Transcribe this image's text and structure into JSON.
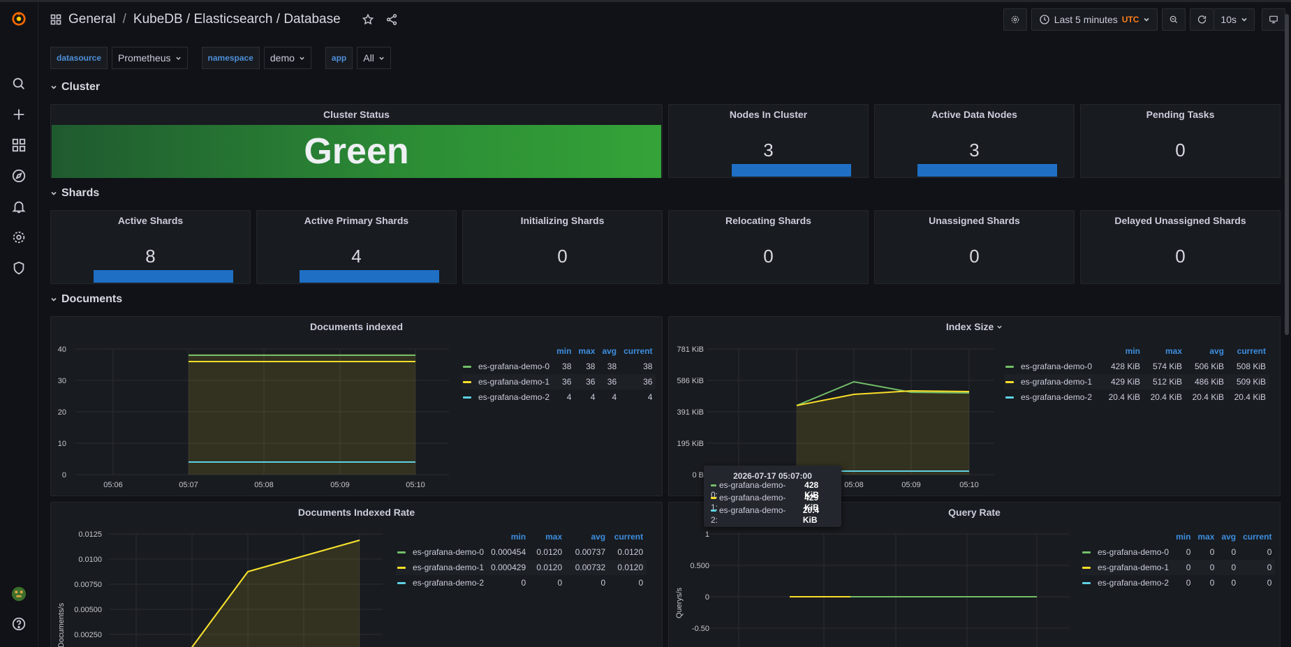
{
  "colors": {
    "green": "#73bf69",
    "yellow": "#fade2a",
    "cyan": "#5ed2e5",
    "blue": "#1f6fc5",
    "accent_label": "#3d8ee0",
    "utc": "#ff7d1a"
  },
  "sidebar": {
    "icons": [
      "grafana-logo-icon",
      "search-icon",
      "plus-icon",
      "dashboards-icon",
      "explore-compass-icon",
      "alerting-bell-icon",
      "configuration-gear-icon",
      "server-admin-shield-icon",
      "user-avatar",
      "help-icon"
    ]
  },
  "header": {
    "breadcrumb_folder": "General",
    "breadcrumb_sep": "/",
    "dashboard_title": "KubeDB / Elasticsearch / Database",
    "time_range": "Last 5 minutes",
    "timezone": "UTC",
    "refresh_interval": "10s"
  },
  "variables": [
    {
      "label": "datasource",
      "value": "Prometheus"
    },
    {
      "label": "namespace",
      "value": "demo"
    },
    {
      "label": "app",
      "value": "All"
    }
  ],
  "rows": {
    "cluster": "Cluster",
    "shards": "Shards",
    "documents": "Documents"
  },
  "cluster": {
    "status_title": "Cluster Status",
    "status_value": "Green",
    "nodes_title": "Nodes In Cluster",
    "nodes_value": "3",
    "data_nodes_title": "Active Data Nodes",
    "data_nodes_value": "3",
    "pending_title": "Pending Tasks",
    "pending_value": "0"
  },
  "shards": [
    {
      "title": "Active Shards",
      "value": "8",
      "spark": true
    },
    {
      "title": "Active Primary Shards",
      "value": "4",
      "spark": true
    },
    {
      "title": "Initializing Shards",
      "value": "0",
      "spark": false
    },
    {
      "title": "Relocating Shards",
      "value": "0",
      "spark": false
    },
    {
      "title": "Unassigned Shards",
      "value": "0",
      "spark": false
    },
    {
      "title": "Delayed Unassigned Shards",
      "value": "0",
      "spark": false
    }
  ],
  "legend_headers": {
    "min": "min",
    "max": "max",
    "avg": "avg",
    "current": "current"
  },
  "docs_indexed": {
    "title": "Documents indexed",
    "yticks": [
      "40",
      "30",
      "20",
      "10",
      "0"
    ],
    "xticks": [
      "05:06",
      "05:07",
      "05:08",
      "05:09",
      "05:10"
    ],
    "legend": [
      {
        "name": "es-grafana-demo-0",
        "min": "38",
        "max": "38",
        "avg": "38",
        "current": "38"
      },
      {
        "name": "es-grafana-demo-1",
        "min": "36",
        "max": "36",
        "avg": "36",
        "current": "36"
      },
      {
        "name": "es-grafana-demo-2",
        "min": "4",
        "max": "4",
        "avg": "4",
        "current": "4"
      }
    ]
  },
  "index_size": {
    "title": "Index Size",
    "yticks": [
      "781 KiB",
      "586 KiB",
      "391 KiB",
      "195 KiB",
      "0 B"
    ],
    "xticks": [
      "05:08",
      "05:09",
      "05:10"
    ],
    "legend": [
      {
        "name": "es-grafana-demo-0",
        "min": "428 KiB",
        "max": "574 KiB",
        "avg": "506 KiB",
        "current": "508 KiB"
      },
      {
        "name": "es-grafana-demo-1",
        "min": "429 KiB",
        "max": "512 KiB",
        "avg": "486 KiB",
        "current": "509 KiB"
      },
      {
        "name": "es-grafana-demo-2",
        "min": "20.4 KiB",
        "max": "20.4 KiB",
        "avg": "20.4 KiB",
        "current": "20.4 KiB"
      }
    ],
    "tooltip": {
      "time": "2026-07-17 05:07:00",
      "rows": [
        {
          "name": "es-grafana-demo-0:",
          "value": "428 KiB"
        },
        {
          "name": "es-grafana-demo-1:",
          "value": "429 KiB"
        },
        {
          "name": "es-grafana-demo-2:",
          "value": "20.4 KiB"
        }
      ]
    }
  },
  "docs_rate": {
    "title": "Documents Indexed Rate",
    "ylabel": "Documents/s",
    "yticks": [
      "0.0125",
      "0.0100",
      "0.00750",
      "0.00500",
      "0.00250"
    ],
    "legend": [
      {
        "name": "es-grafana-demo-0",
        "min": "0.000454",
        "max": "0.0120",
        "avg": "0.00737",
        "current": "0.0120"
      },
      {
        "name": "es-grafana-demo-1",
        "min": "0.000429",
        "max": "0.0120",
        "avg": "0.00732",
        "current": "0.0120"
      },
      {
        "name": "es-grafana-demo-2",
        "min": "0",
        "max": "0",
        "avg": "0",
        "current": "0"
      }
    ]
  },
  "query_rate": {
    "title": "Query Rate",
    "ylabel": "Querys/s",
    "yticks": [
      "1",
      "0.500",
      "0",
      "-0.50"
    ],
    "legend": [
      {
        "name": "es-grafana-demo-0",
        "min": "0",
        "max": "0",
        "avg": "0",
        "current": "0"
      },
      {
        "name": "es-grafana-demo-1",
        "min": "0",
        "max": "0",
        "avg": "0",
        "current": "0"
      },
      {
        "name": "es-grafana-demo-2",
        "min": "0",
        "max": "0",
        "avg": "0",
        "current": "0"
      }
    ]
  }
}
